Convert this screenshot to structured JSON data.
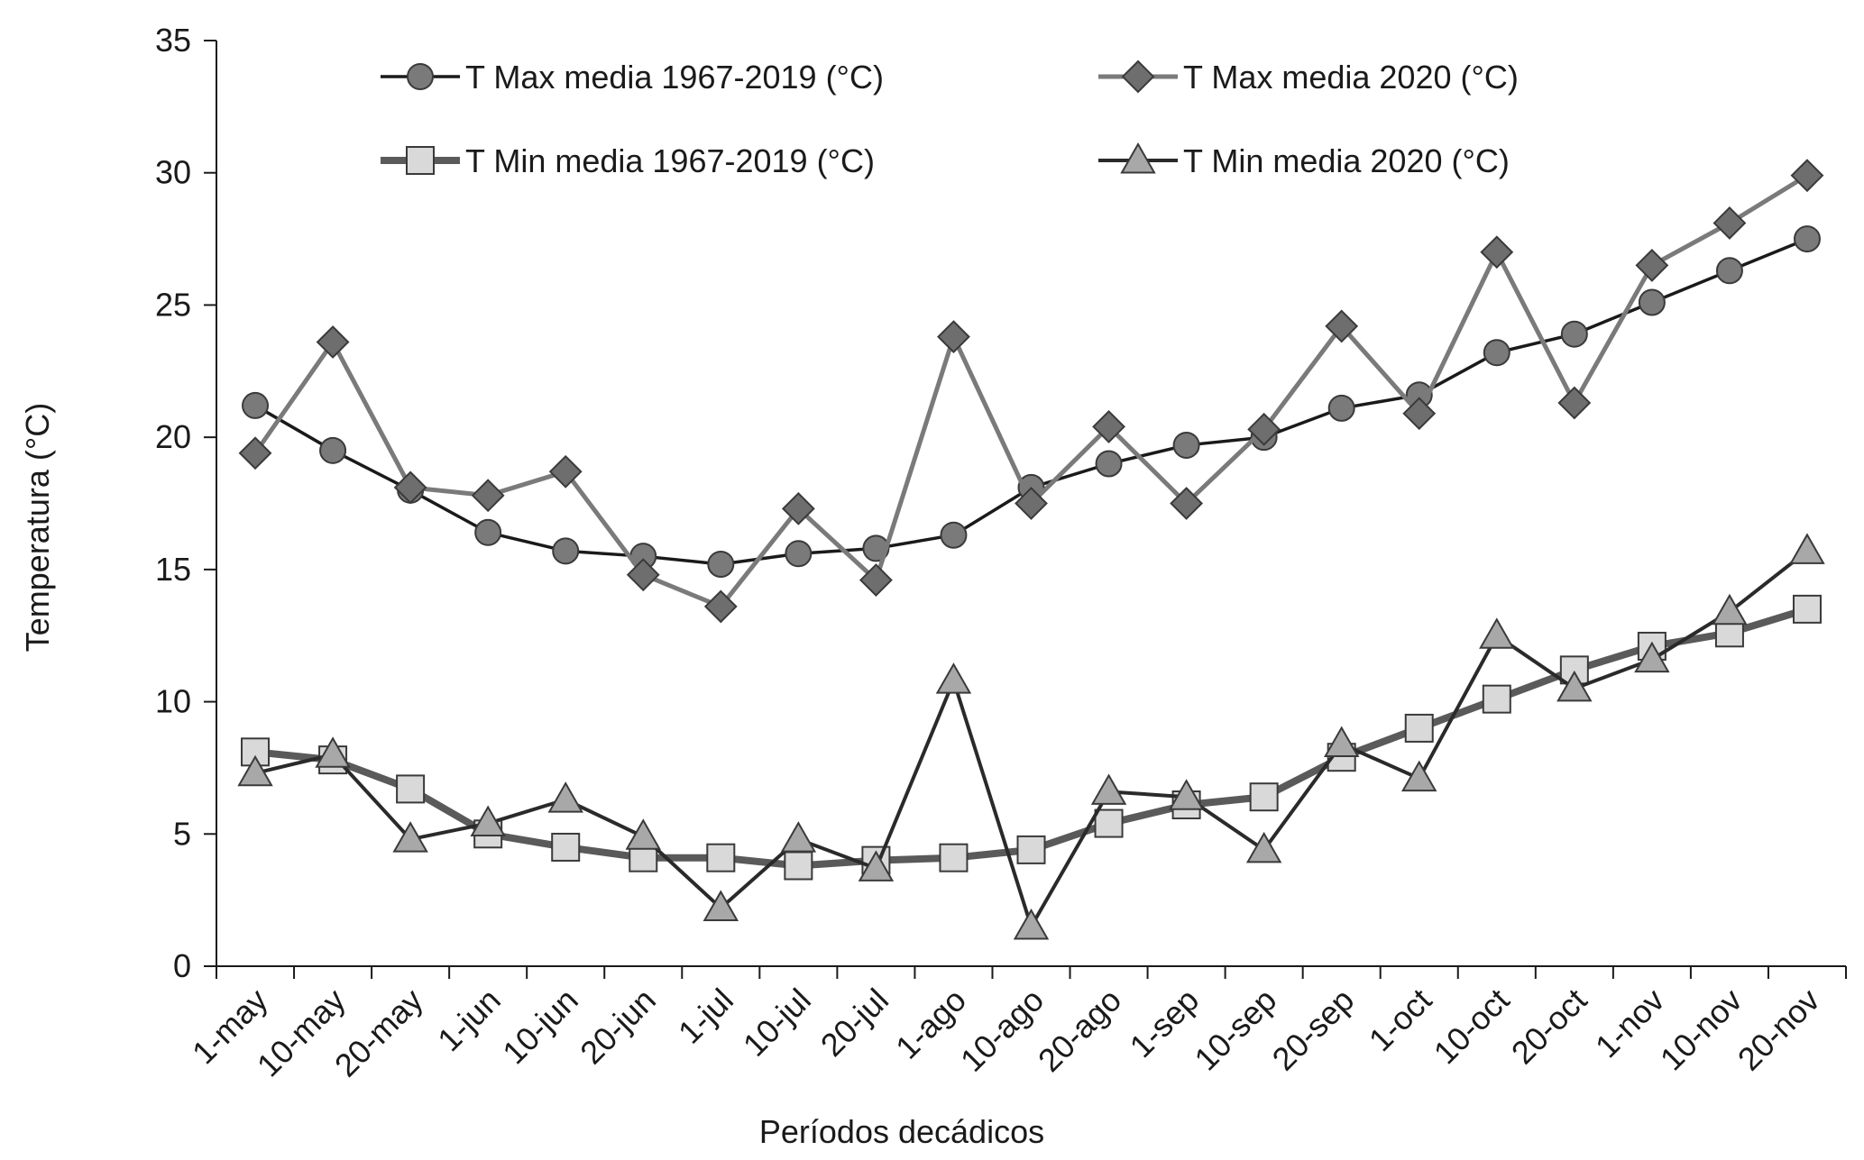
{
  "chart_data": {
    "type": "line",
    "xlabel": "Períodos decádicos",
    "ylabel": "Temperatura (°C)",
    "ylim": [
      0,
      35
    ],
    "yticks": [
      0,
      5,
      10,
      15,
      20,
      25,
      30,
      35
    ],
    "grid": false,
    "legend_position": "top",
    "categories": [
      "1-may",
      "10-may",
      "20-may",
      "1-jun",
      "10-jun",
      "20-jun",
      "1-jul",
      "10-jul",
      "20-jul",
      "1-ago",
      "10-ago",
      "20-ago",
      "1-sep",
      "10-sep",
      "20-sep",
      "1-oct",
      "10-oct",
      "20-oct",
      "1-nov",
      "10-nov",
      "20-nov"
    ],
    "series": [
      {
        "name": "T Max media 1967-2019 (°C)",
        "marker": "circle",
        "line_color": "#1a1a1a",
        "marker_fill": "#7a7a7a",
        "values": [
          21.2,
          19.5,
          18.0,
          16.4,
          15.7,
          15.5,
          15.2,
          15.6,
          15.8,
          16.3,
          18.1,
          19.0,
          19.7,
          20.0,
          21.1,
          21.6,
          23.2,
          23.9,
          25.1,
          26.3,
          27.5
        ]
      },
      {
        "name": "T Max media 2020 (°C)",
        "marker": "diamond",
        "line_color": "#7a7a7a",
        "marker_fill": "#6e6e6e",
        "values": [
          19.4,
          23.6,
          18.1,
          17.8,
          18.7,
          14.8,
          13.6,
          17.3,
          14.6,
          23.8,
          17.5,
          20.4,
          17.5,
          20.3,
          24.2,
          20.9,
          27.0,
          21.3,
          26.5,
          28.1,
          29.9
        ]
      },
      {
        "name": "T Min media 1967-2019 (°C)",
        "marker": "square",
        "line_color": "#5a5a5a",
        "marker_fill": "#d9d9d9",
        "values": [
          8.1,
          7.8,
          6.7,
          5.0,
          4.5,
          4.1,
          4.1,
          3.8,
          4.0,
          4.1,
          4.4,
          5.4,
          6.1,
          6.4,
          7.9,
          9.0,
          10.1,
          11.2,
          12.1,
          12.6,
          13.5
        ]
      },
      {
        "name": "T Min media 2020 (°C)",
        "marker": "triangle",
        "line_color": "#2a2a2a",
        "marker_fill": "#a8a8a8",
        "values": [
          7.3,
          8.0,
          4.8,
          5.4,
          6.3,
          4.9,
          2.2,
          4.8,
          3.7,
          10.8,
          1.5,
          6.6,
          6.4,
          4.4,
          8.4,
          7.1,
          12.5,
          10.5,
          11.6,
          13.4,
          15.7
        ]
      }
    ]
  }
}
